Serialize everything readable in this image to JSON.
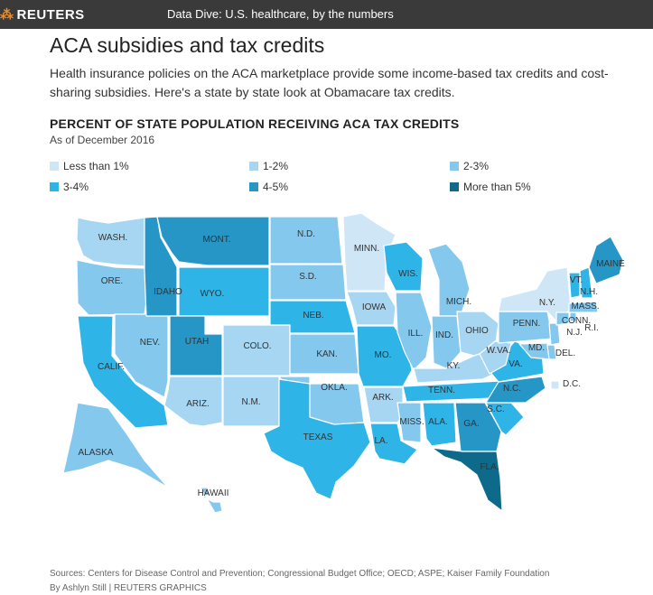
{
  "header": {
    "brand": "REUTERS",
    "title": "Data Dive: U.S. healthcare, by the numbers"
  },
  "article": {
    "title": "ACA subsidies and tax credits",
    "intro": "Health insurance policies on the ACA marketplace provide some income-based tax credits and cost-sharing subsidies. Here's a state by state look at Obamacare tax credits."
  },
  "map": {
    "title": "PERCENT OF STATE POPULATION RECEIVING ACA TAX CREDITS",
    "subtitle": "As of December 2016",
    "legend": [
      {
        "label": "Less than 1%",
        "color": "#cfe6f6"
      },
      {
        "label": "1-2%",
        "color": "#a6d6f1"
      },
      {
        "label": "2-3%",
        "color": "#84c8ee"
      },
      {
        "label": "3-4%",
        "color": "#2eb4e6"
      },
      {
        "label": "4-5%",
        "color": "#2596c6"
      },
      {
        "label": "More than 5%",
        "color": "#0d6a8a"
      }
    ],
    "states": [
      {
        "label": "WASH.",
        "class": "1-2%"
      },
      {
        "label": "ORE.",
        "class": "2-3%"
      },
      {
        "label": "CALIF.",
        "class": "3-4%"
      },
      {
        "label": "NEV.",
        "class": "2-3%"
      },
      {
        "label": "IDAHO",
        "class": "4-5%"
      },
      {
        "label": "MONT.",
        "class": "4-5%"
      },
      {
        "label": "WYO.",
        "class": "3-4%"
      },
      {
        "label": "UTAH",
        "class": "4-5%"
      },
      {
        "label": "COLO.",
        "class": "1-2%"
      },
      {
        "label": "ARIZ.",
        "class": "1-2%"
      },
      {
        "label": "N.M.",
        "class": "1-2%"
      },
      {
        "label": "N.D.",
        "class": "2-3%"
      },
      {
        "label": "S.D.",
        "class": "2-3%"
      },
      {
        "label": "NEB.",
        "class": "3-4%"
      },
      {
        "label": "KAN.",
        "class": "2-3%"
      },
      {
        "label": "OKLA.",
        "class": "2-3%"
      },
      {
        "label": "TEXAS",
        "class": "3-4%"
      },
      {
        "label": "MINN.",
        "class": "Less than 1%"
      },
      {
        "label": "IOWA",
        "class": "1-2%"
      },
      {
        "label": "MO.",
        "class": "3-4%"
      },
      {
        "label": "ARK.",
        "class": "1-2%"
      },
      {
        "label": "LA.",
        "class": "3-4%"
      },
      {
        "label": "WIS.",
        "class": "3-4%"
      },
      {
        "label": "ILL.",
        "class": "2-3%"
      },
      {
        "label": "MICH.",
        "class": "2-3%"
      },
      {
        "label": "IND.",
        "class": "2-3%"
      },
      {
        "label": "OHIO",
        "class": "1-2%"
      },
      {
        "label": "KY.",
        "class": "1-2%"
      },
      {
        "label": "TENN.",
        "class": "3-4%"
      },
      {
        "label": "MISS.",
        "class": "2-3%"
      },
      {
        "label": "ALA.",
        "class": "3-4%"
      },
      {
        "label": "GA.",
        "class": "4-5%"
      },
      {
        "label": "FLA.",
        "class": "More than 5%"
      },
      {
        "label": "S.C.",
        "class": "3-4%"
      },
      {
        "label": "N.C.",
        "class": "4-5%"
      },
      {
        "label": "VA.",
        "class": "3-4%"
      },
      {
        "label": "W.VA.",
        "class": "1-2%"
      },
      {
        "label": "PENN.",
        "class": "2-3%"
      },
      {
        "label": "N.Y.",
        "class": "Less than 1%"
      },
      {
        "label": "MD.",
        "class": "2-3%"
      },
      {
        "label": "DEL.",
        "class": "2-3%"
      },
      {
        "label": "N.J.",
        "class": "2-3%"
      },
      {
        "label": "CONN.",
        "class": "2-3%"
      },
      {
        "label": "R.I.",
        "class": "2-3%"
      },
      {
        "label": "MASS.",
        "class": "2-3%"
      },
      {
        "label": "VT.",
        "class": "3-4%"
      },
      {
        "label": "N.H.",
        "class": "3-4%"
      },
      {
        "label": "MAINE",
        "class": "4-5%"
      },
      {
        "label": "D.C.",
        "class": "Less than 1%"
      },
      {
        "label": "ALASKA",
        "class": "2-3%"
      },
      {
        "label": "HAWAII",
        "class": "2-3%"
      }
    ]
  },
  "footer": {
    "sources": "Sources: Centers for Disease Control and Prevention; Congressional Budget Office; OECD; ASPE; Kaiser Family Foundation",
    "byline": "By Ashlyn Still | REUTERS GRAPHICS"
  }
}
